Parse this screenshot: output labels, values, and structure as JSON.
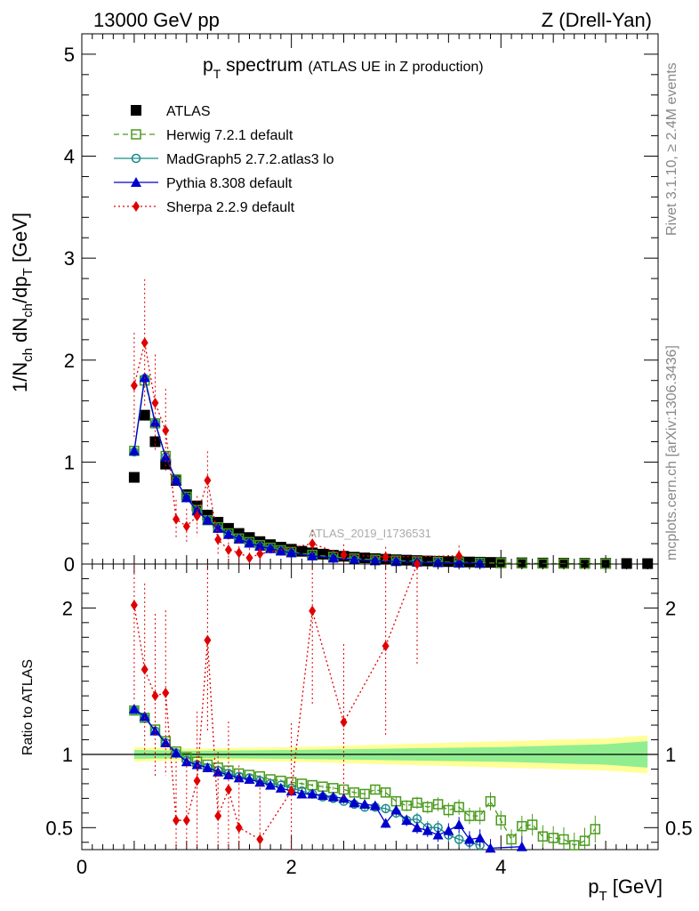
{
  "header": {
    "left": "13000 GeV pp",
    "right": "Z (Drell-Yan)"
  },
  "title": {
    "main": "p",
    "main_sub": "T",
    "main_rest": " spectrum",
    "extra": "(ATLAS UE in Z production)"
  },
  "side_labels": {
    "rivet": "Rivet 3.1.10, ≥ 2.4M events",
    "mcplots": "mcplots.cern.ch [arXiv:1306.3436]"
  },
  "watermark": "ATLAS_2019_I1736531",
  "axes": {
    "ylabel_main": {
      "p1": "1/N",
      "s1": "ch",
      "p2": " dN",
      "s2": "ch",
      "p3": "/dp",
      "s3": "T",
      "p4": " [GeV]"
    },
    "ylabel_ratio": "Ratio to ATLAS",
    "xlabel": {
      "p1": "p",
      "s1": "T",
      "p2": " [GeV]"
    },
    "main_yticks": [
      "0",
      "1",
      "2",
      "3",
      "4",
      "5"
    ],
    "ratio_yticks": [
      "0.5",
      "1",
      "2"
    ],
    "xticks": [
      "0",
      "2",
      "4"
    ]
  },
  "legend": [
    {
      "label": "ATLAS",
      "color": "#000000",
      "marker": "square-filled",
      "line": "none"
    },
    {
      "label": "Herwig 7.2.1 default",
      "color": "#4a9a1c",
      "marker": "square-open",
      "line": "dashed"
    },
    {
      "label": "MadGraph5 2.7.2.atlas3 lo",
      "color": "#1a8a8a",
      "marker": "circle-open",
      "line": "solid"
    },
    {
      "label": "Pythia 8.308 default",
      "color": "#0000cc",
      "marker": "triangle-filled",
      "line": "solid"
    },
    {
      "label": "Sherpa 2.2.9 default",
      "color": "#e00000",
      "marker": "diamond-filled",
      "line": "dotted"
    }
  ],
  "chart_data": {
    "type": "line",
    "main_panel": {
      "xlim": [
        0,
        5.5
      ],
      "ylim": [
        0,
        5.2
      ],
      "ylabel": "1/Nch dNch/dpT [GeV]",
      "series": [
        {
          "name": "ATLAS",
          "x": [
            0.5,
            0.6,
            0.7,
            0.8,
            0.9,
            1.0,
            1.1,
            1.2,
            1.3,
            1.4,
            1.5,
            1.6,
            1.7,
            1.8,
            1.9,
            2.0,
            2.1,
            2.2,
            2.3,
            2.4,
            2.5,
            2.6,
            2.7,
            2.8,
            2.9,
            3.0,
            3.1,
            3.2,
            3.3,
            3.4,
            3.5,
            3.6,
            3.7,
            3.8,
            3.9,
            4.0,
            4.2,
            4.4,
            4.6,
            4.8,
            5.0,
            5.2,
            5.4
          ],
          "y": [
            0.85,
            1.46,
            1.2,
            0.98,
            0.82,
            0.68,
            0.57,
            0.48,
            0.41,
            0.35,
            0.3,
            0.26,
            0.22,
            0.19,
            0.165,
            0.145,
            0.125,
            0.11,
            0.097,
            0.086,
            0.076,
            0.067,
            0.06,
            0.053,
            0.047,
            0.042,
            0.038,
            0.034,
            0.03,
            0.027,
            0.024,
            0.022,
            0.02,
            0.018,
            0.016,
            0.014,
            0.012,
            0.01,
            0.008,
            0.007,
            0.006,
            0.005,
            0.004
          ]
        },
        {
          "name": "Herwig 7.2.1 default",
          "x": [
            0.5,
            0.6,
            0.7,
            0.8,
            0.9,
            1.0,
            1.1,
            1.2,
            1.3,
            1.4,
            1.5,
            1.6,
            1.7,
            1.8,
            1.9,
            2.0,
            2.2,
            2.4,
            2.6,
            2.8,
            3.0,
            3.2,
            3.4,
            3.6,
            3.8,
            4.0,
            4.2,
            4.4,
            4.6,
            4.8,
            5.0
          ],
          "y": [
            1.11,
            1.8,
            1.38,
            1.06,
            0.83,
            0.66,
            0.53,
            0.43,
            0.36,
            0.3,
            0.25,
            0.215,
            0.185,
            0.16,
            0.135,
            0.118,
            0.09,
            0.07,
            0.054,
            0.042,
            0.033,
            0.026,
            0.02,
            0.016,
            0.012,
            0.009,
            0.007,
            0.005,
            0.004,
            0.003,
            0.003
          ]
        },
        {
          "name": "MadGraph5 2.7.2.atlas3 lo",
          "x": [
            0.5,
            0.6,
            0.7,
            0.8,
            0.9,
            1.0,
            1.1,
            1.2,
            1.3,
            1.4,
            1.5,
            1.6,
            1.7,
            1.8,
            1.9,
            2.0,
            2.2,
            2.4,
            2.6,
            2.8,
            3.0,
            3.2,
            3.4,
            3.6,
            3.8
          ],
          "y": [
            1.1,
            1.82,
            1.38,
            1.05,
            0.82,
            0.65,
            0.52,
            0.43,
            0.35,
            0.29,
            0.245,
            0.205,
            0.175,
            0.15,
            0.128,
            0.11,
            0.08,
            0.059,
            0.044,
            0.033,
            0.025,
            0.018,
            0.013,
            0.009,
            0.007
          ]
        },
        {
          "name": "Pythia 8.308 default",
          "x": [
            0.5,
            0.6,
            0.7,
            0.8,
            0.9,
            1.0,
            1.1,
            1.2,
            1.3,
            1.4,
            1.5,
            1.6,
            1.7,
            1.8,
            1.9,
            2.0,
            2.2,
            2.4,
            2.6,
            2.8,
            3.0,
            3.2,
            3.4,
            3.6,
            3.8
          ],
          "y": [
            1.11,
            1.83,
            1.39,
            1.05,
            0.82,
            0.65,
            0.52,
            0.43,
            0.35,
            0.29,
            0.245,
            0.205,
            0.175,
            0.15,
            0.128,
            0.11,
            0.08,
            0.058,
            0.043,
            0.032,
            0.024,
            0.018,
            0.013,
            0.01,
            0.007
          ]
        },
        {
          "name": "Sherpa 2.2.9 default",
          "x": [
            0.5,
            0.6,
            0.7,
            0.8,
            0.9,
            1.0,
            1.1,
            1.2,
            1.3,
            1.4,
            1.5,
            1.6,
            1.7,
            2.2,
            2.5,
            2.9,
            3.6
          ],
          "y": [
            1.75,
            2.17,
            1.58,
            1.31,
            0.44,
            0.37,
            0.47,
            0.82,
            0.24,
            0.14,
            0.11,
            0.06,
            0.1,
            0.2,
            0.09,
            0.07,
            0.08
          ]
        }
      ]
    },
    "ratio_panel": {
      "xlim": [
        0,
        5.5
      ],
      "ylim": [
        0.35,
        2.3
      ],
      "ylabel": "Ratio to ATLAS",
      "series": [
        {
          "name": "Herwig 7.2.1 default",
          "x": [
            0.5,
            0.6,
            0.7,
            0.8,
            0.9,
            1.0,
            1.1,
            1.2,
            1.3,
            1.4,
            1.5,
            1.6,
            1.7,
            1.8,
            1.9,
            2.0,
            2.1,
            2.2,
            2.3,
            2.4,
            2.5,
            2.6,
            2.7,
            2.8,
            2.9,
            3.0,
            3.1,
            3.2,
            3.3,
            3.4,
            3.5,
            3.6,
            3.7,
            3.8,
            3.9,
            4.0,
            4.1,
            4.2,
            4.3,
            4.4,
            4.5,
            4.6,
            4.7,
            4.8,
            4.9
          ],
          "y": [
            1.3,
            1.25,
            1.17,
            1.09,
            1.02,
            0.98,
            0.95,
            0.93,
            0.91,
            0.89,
            0.87,
            0.86,
            0.85,
            0.83,
            0.82,
            0.81,
            0.8,
            0.79,
            0.78,
            0.77,
            0.76,
            0.74,
            0.73,
            0.76,
            0.74,
            0.68,
            0.65,
            0.67,
            0.64,
            0.66,
            0.62,
            0.64,
            0.58,
            0.58,
            0.68,
            0.55,
            0.42,
            0.51,
            0.52,
            0.44,
            0.43,
            0.42,
            0.38,
            0.41,
            0.49
          ]
        },
        {
          "name": "MadGraph5 2.7.2.atlas3 lo",
          "x": [
            0.5,
            0.6,
            0.7,
            0.8,
            0.9,
            1.0,
            1.1,
            1.2,
            1.3,
            1.4,
            1.5,
            1.6,
            1.7,
            1.8,
            1.9,
            2.0,
            2.1,
            2.2,
            2.3,
            2.4,
            2.5,
            2.6,
            2.7,
            2.8,
            2.9,
            3.0,
            3.1,
            3.2,
            3.3,
            3.4,
            3.5,
            3.6,
            3.7,
            3.8
          ],
          "y": [
            1.3,
            1.25,
            1.16,
            1.08,
            1.01,
            0.96,
            0.93,
            0.91,
            0.89,
            0.87,
            0.85,
            0.84,
            0.82,
            0.8,
            0.79,
            0.77,
            0.75,
            0.73,
            0.71,
            0.7,
            0.68,
            0.66,
            0.64,
            0.64,
            0.63,
            0.6,
            0.55,
            0.56,
            0.5,
            0.5,
            0.45,
            0.42,
            0.4,
            0.38
          ]
        },
        {
          "name": "Pythia 8.308 default",
          "x": [
            0.5,
            0.6,
            0.7,
            0.8,
            0.9,
            1.0,
            1.1,
            1.2,
            1.3,
            1.4,
            1.5,
            1.6,
            1.7,
            1.8,
            1.9,
            2.0,
            2.1,
            2.2,
            2.3,
            2.4,
            2.5,
            2.6,
            2.7,
            2.8,
            2.9,
            3.0,
            3.1,
            3.2,
            3.3,
            3.4,
            3.5,
            3.6,
            3.7,
            3.8,
            3.9,
            4.0,
            4.1,
            4.2,
            4.3,
            4.4,
            4.5,
            4.6
          ],
          "y": [
            1.31,
            1.26,
            1.16,
            1.08,
            1.01,
            0.95,
            0.93,
            0.91,
            0.88,
            0.86,
            0.84,
            0.83,
            0.81,
            0.79,
            0.77,
            0.75,
            0.73,
            0.73,
            0.72,
            0.71,
            0.7,
            0.67,
            0.66,
            0.65,
            0.53,
            0.62,
            0.55,
            0.5,
            0.48,
            0.45,
            0.48,
            0.52,
            0.42,
            0.43,
            0.36,
            0.3,
            0.25,
            0.37,
            0.32,
            0.3,
            0.28,
            0.32
          ]
        },
        {
          "name": "Sherpa 2.2.9 default",
          "x": [
            0.5,
            0.6,
            0.7,
            0.8,
            0.9,
            1.0,
            1.1,
            1.2,
            1.3,
            1.4,
            1.5,
            1.6,
            1.7,
            2.0,
            2.2,
            2.5,
            2.9,
            3.2
          ],
          "y": [
            2.02,
            1.58,
            1.4,
            1.42,
            0.55,
            0.55,
            0.82,
            1.78,
            0.58,
            0.76,
            0.5,
            0.32,
            0.42,
            0.75,
            1.98,
            1.22,
            1.74,
            2.3
          ]
        }
      ],
      "uncertainty_band_inner": {
        "x": [
          0.5,
          1,
          2,
          3,
          4,
          5,
          5.4
        ],
        "half_width": [
          0.03,
          0.025,
          0.03,
          0.04,
          0.05,
          0.07,
          0.09
        ]
      },
      "uncertainty_band_outer": {
        "x": [
          0.5,
          1,
          2,
          3,
          4,
          5,
          5.4
        ],
        "half_width": [
          0.05,
          0.04,
          0.05,
          0.07,
          0.09,
          0.11,
          0.13
        ]
      }
    }
  }
}
